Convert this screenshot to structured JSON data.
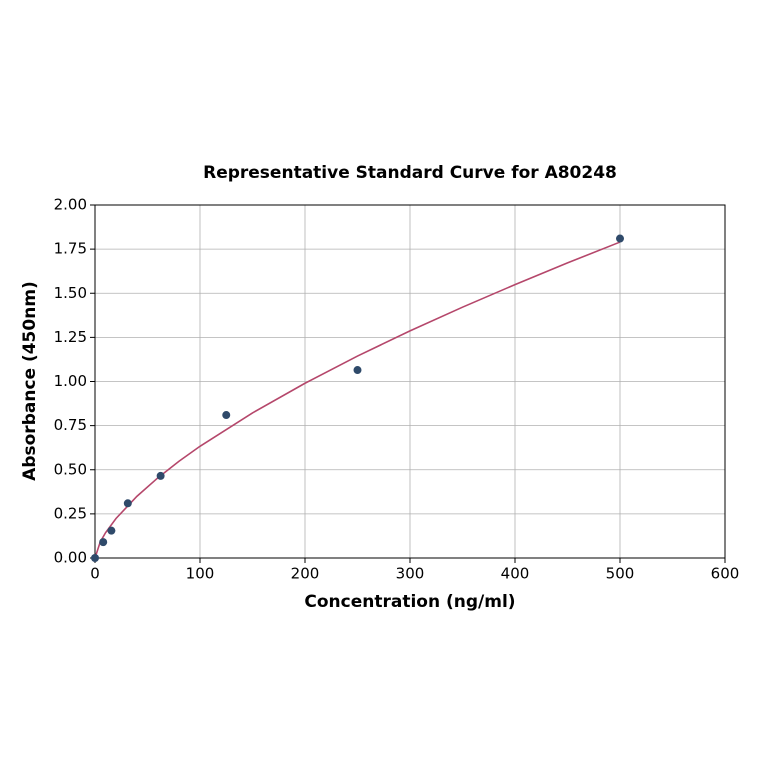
{
  "chart_data": {
    "type": "scatter",
    "title": "Representative Standard Curve for A80248",
    "x_label": "Concentration (ng/ml)",
    "y_label": "Absorbance (450nm)",
    "x": [
      0,
      7.8,
      15.6,
      31.25,
      62.5,
      125,
      250,
      500
    ],
    "values": [
      0,
      0.09,
      0.155,
      0.31,
      0.465,
      0.81,
      1.065,
      1.81
    ],
    "color": "#2f4a6a",
    "curve": {
      "color": "#b5476b",
      "x": [
        0,
        5,
        10,
        20,
        40,
        60,
        80,
        100,
        150,
        200,
        250,
        300,
        350,
        400,
        450,
        500
      ],
      "values": [
        0,
        0.091,
        0.143,
        0.224,
        0.35,
        0.455,
        0.548,
        0.633,
        0.822,
        0.99,
        1.144,
        1.287,
        1.421,
        1.549,
        1.672,
        1.79
      ]
    },
    "xlim": [
      0,
      600
    ],
    "xticks": [
      0,
      100,
      200,
      300,
      400,
      500,
      600
    ],
    "ylim": [
      0,
      2
    ],
    "yticks": [
      {
        "value": 0,
        "label": "0.00"
      },
      {
        "value": 0.25,
        "label": "0.25"
      },
      {
        "value": 0.5,
        "label": "0.50"
      },
      {
        "value": 0.75,
        "label": "0.75"
      },
      {
        "value": 1,
        "label": "1.00"
      },
      {
        "value": 1.25,
        "label": "1.25"
      },
      {
        "value": 1.5,
        "label": "1.50"
      },
      {
        "value": 1.75,
        "label": "1.75"
      },
      {
        "value": 2,
        "label": "2.00"
      }
    ],
    "grid": true
  }
}
